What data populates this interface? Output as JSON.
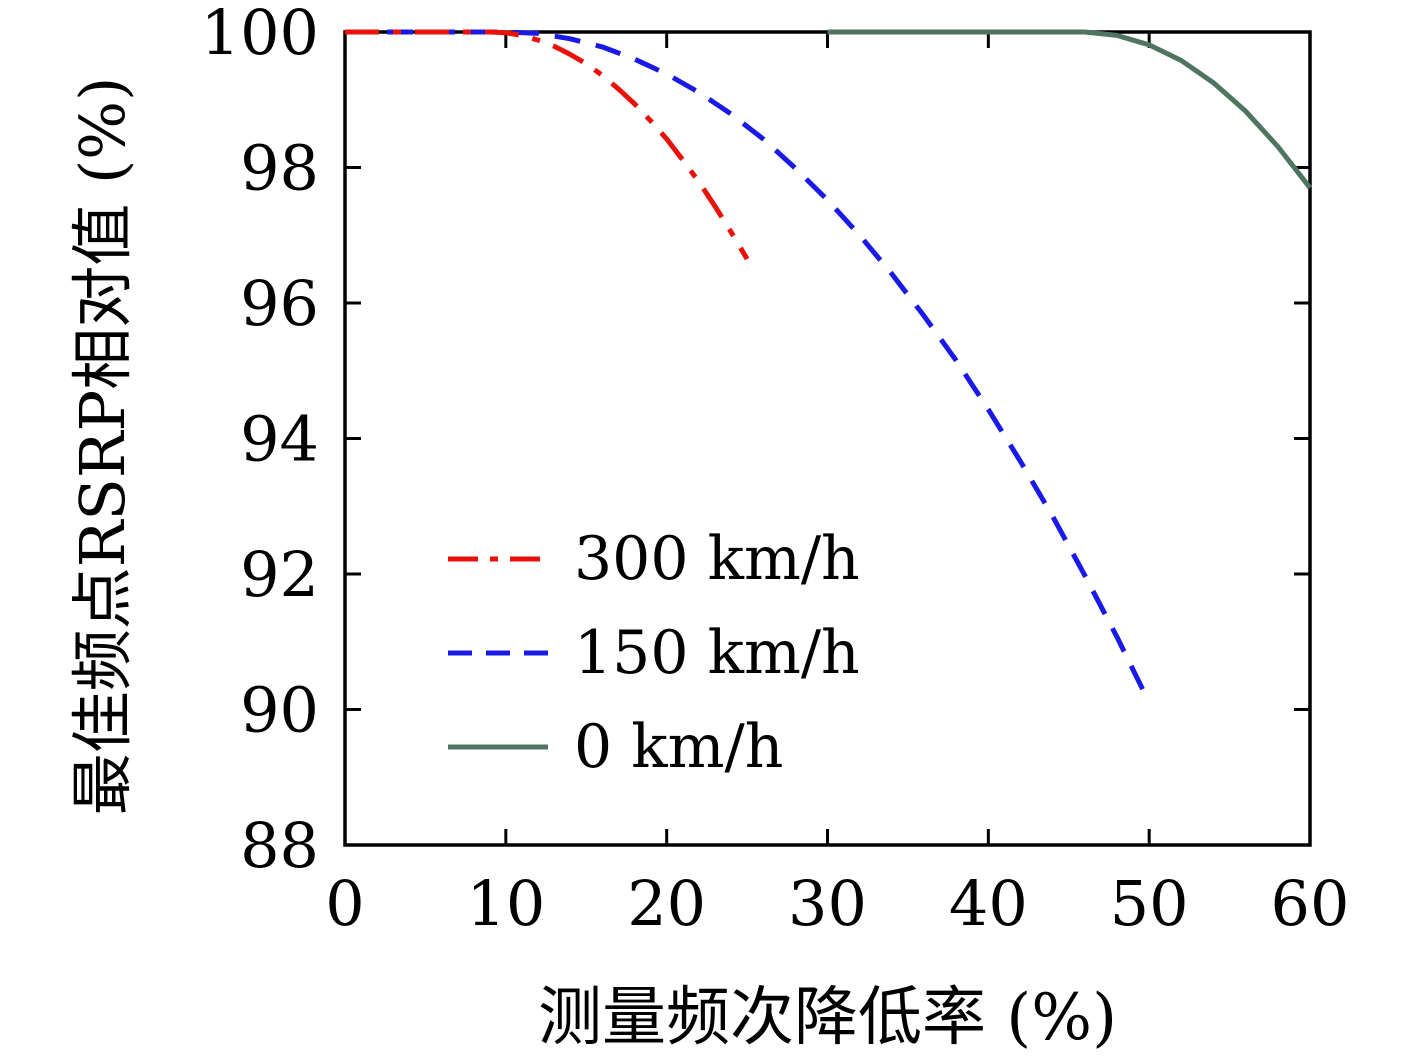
{
  "chart_data": {
    "type": "line",
    "title": "",
    "xlabel": "测量频次降低率 (%)",
    "ylabel": "最佳频点RSRP相对值 (%)",
    "xlim": [
      0,
      60
    ],
    "ylim": [
      88,
      100
    ],
    "xticks": [
      0,
      10,
      20,
      30,
      40,
      50,
      60
    ],
    "yticks": [
      88,
      90,
      92,
      94,
      96,
      98,
      100
    ],
    "grid": false,
    "legend_position": "inside-center-left",
    "axis_color": "#000000",
    "series": [
      {
        "name": "300 km/h",
        "color": "#e8120b",
        "style": "dashdot",
        "points": [
          [
            0,
            100
          ],
          [
            2,
            100
          ],
          [
            4,
            100
          ],
          [
            6,
            100
          ],
          [
            8,
            100
          ],
          [
            9,
            100
          ],
          [
            10,
            99.99
          ],
          [
            11,
            99.95
          ],
          [
            12,
            99.88
          ],
          [
            13,
            99.79
          ],
          [
            14,
            99.67
          ],
          [
            15,
            99.53
          ],
          [
            16,
            99.36
          ],
          [
            17,
            99.16
          ],
          [
            18,
            98.94
          ],
          [
            19,
            98.69
          ],
          [
            20,
            98.42
          ],
          [
            21,
            98.11
          ],
          [
            22,
            97.79
          ],
          [
            23,
            97.43
          ],
          [
            24,
            97.05
          ],
          [
            25,
            96.65
          ]
        ]
      },
      {
        "name": "150 km/h",
        "color": "#1a1ae6",
        "style": "dashed",
        "points": [
          [
            0,
            100
          ],
          [
            3,
            100
          ],
          [
            6,
            100
          ],
          [
            8,
            100
          ],
          [
            10,
            100
          ],
          [
            12,
            99.98
          ],
          [
            14,
            99.9
          ],
          [
            16,
            99.78
          ],
          [
            18,
            99.6
          ],
          [
            20,
            99.38
          ],
          [
            22,
            99.11
          ],
          [
            24,
            98.79
          ],
          [
            26,
            98.42
          ],
          [
            28,
            97.99
          ],
          [
            30,
            97.52
          ],
          [
            32,
            97.0
          ],
          [
            34,
            96.43
          ],
          [
            36,
            95.81
          ],
          [
            38,
            95.15
          ],
          [
            40,
            94.43
          ],
          [
            42,
            93.66
          ],
          [
            44,
            92.85
          ],
          [
            46,
            91.98
          ],
          [
            48,
            91.07
          ],
          [
            50,
            90.1
          ]
        ]
      },
      {
        "name": "0 km/h",
        "color": "#4f7560",
        "style": "solid",
        "points": [
          [
            30,
            100
          ],
          [
            34,
            100
          ],
          [
            38,
            100
          ],
          [
            42,
            100
          ],
          [
            45,
            100
          ],
          [
            46,
            100
          ],
          [
            48,
            99.95
          ],
          [
            50,
            99.81
          ],
          [
            52,
            99.58
          ],
          [
            54,
            99.25
          ],
          [
            56,
            98.83
          ],
          [
            58,
            98.31
          ],
          [
            60,
            97.7
          ]
        ]
      }
    ]
  }
}
